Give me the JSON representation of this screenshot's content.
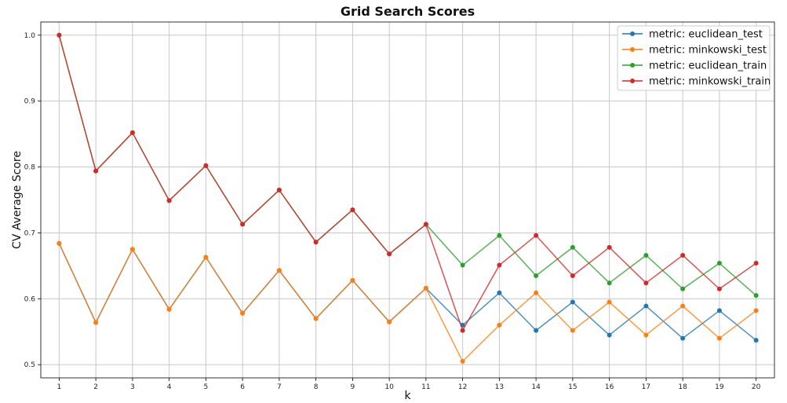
{
  "chart_data": {
    "type": "line",
    "title": "Grid Search Scores",
    "xlabel": "k",
    "ylabel": "CV Average Score",
    "x": [
      1,
      2,
      3,
      4,
      5,
      6,
      7,
      8,
      9,
      10,
      11,
      12,
      13,
      14,
      15,
      16,
      17,
      18,
      19,
      20
    ],
    "xlim": [
      0.5,
      20.5
    ],
    "ylim": [
      0.48,
      1.02
    ],
    "y_ticks": [
      0.5,
      0.6,
      0.7,
      0.8,
      0.9,
      1.0
    ],
    "y_tick_labels": [
      "0.5",
      "0.6",
      "0.7",
      "0.8",
      "0.9",
      "1.0"
    ],
    "grid": true,
    "legend_position": "top-right",
    "series": [
      {
        "name": "metric: euclidean_test",
        "color": "#1f77b4",
        "values": [
          0.684,
          0.564,
          0.675,
          0.584,
          0.663,
          0.578,
          0.643,
          0.57,
          0.628,
          0.565,
          0.616,
          0.56,
          0.609,
          0.552,
          0.595,
          0.545,
          0.589,
          0.54,
          0.582,
          0.537
        ]
      },
      {
        "name": "metric: minkowski_test",
        "color": "#ff7f0e",
        "values": [
          0.684,
          0.564,
          0.675,
          0.584,
          0.663,
          0.578,
          0.643,
          0.57,
          0.628,
          0.565,
          0.616,
          0.505,
          0.56,
          0.609,
          0.552,
          0.595,
          0.545,
          0.589,
          0.54,
          0.582
        ]
      },
      {
        "name": "metric: euclidean_train",
        "color": "#2ca02c",
        "values": [
          1.0,
          0.794,
          0.852,
          0.749,
          0.802,
          0.713,
          0.765,
          0.686,
          0.735,
          0.668,
          0.713,
          0.651,
          0.696,
          0.635,
          0.678,
          0.624,
          0.666,
          0.615,
          0.654,
          0.605
        ]
      },
      {
        "name": "metric: minkowski_train",
        "color": "#d62728",
        "values": [
          1.0,
          0.794,
          0.852,
          0.749,
          0.802,
          0.713,
          0.765,
          0.686,
          0.735,
          0.668,
          0.713,
          0.552,
          0.651,
          0.696,
          0.635,
          0.678,
          0.624,
          0.666,
          0.615,
          0.654
        ]
      }
    ]
  }
}
